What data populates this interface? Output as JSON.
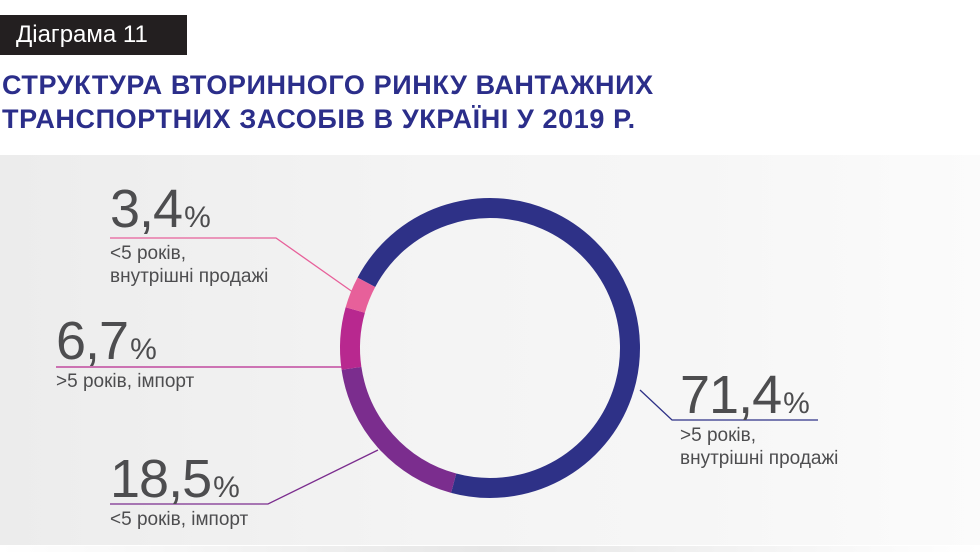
{
  "header": {
    "tag": "Діаграма 11",
    "title_line1": "СТРУКТУРА ВТОРИННОГО РИНКУ ВАНТАЖНИХ",
    "title_line2": "ТРАНСПОРТНИХ ЗАСОБІВ В УКРАЇНІ У 2019 Р."
  },
  "percent_sign": "%",
  "chart_data": {
    "type": "pie",
    "variant": "donut",
    "title": "СТРУКТУРА ВТОРИННОГО РИНКУ ВАНТАЖНИХ ТРАНСПОРТНИХ ЗАСОБІВ В УКРАЇНІ У 2019 Р.",
    "unit": "%",
    "slices": [
      {
        "value_label": "71,4",
        "value": 71.4,
        "label_line1": ">5 років,",
        "label_line2": "внутрішні продажі",
        "color": "#2e3187"
      },
      {
        "value_label": "18,5",
        "value": 18.5,
        "label_line1": "<5 років, імпорт",
        "label_line2": "",
        "color": "#7b2d8e"
      },
      {
        "value_label": "6,7",
        "value": 6.7,
        "label_line1": ">5 років, імпорт",
        "label_line2": "",
        "color": "#b8288f"
      },
      {
        "value_label": "3,4",
        "value": 3.4,
        "label_line1": "<5 років,",
        "label_line2": "внутрішні продажі",
        "color": "#e7609a"
      }
    ]
  }
}
